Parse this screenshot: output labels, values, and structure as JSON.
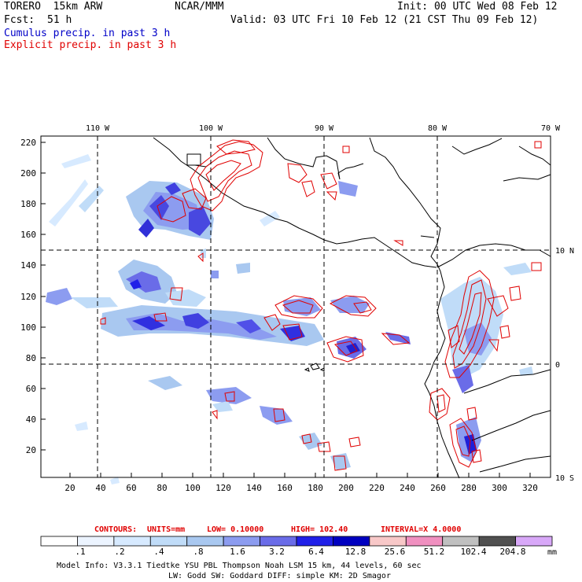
{
  "header": {
    "model": "TORERO  15km ARW",
    "forecast_label": "Fcst:",
    "forecast_hours": "51 h",
    "org": "NCAR/MMM",
    "init": "Init: 00 UTC Wed 08 Feb 12",
    "valid": "Valid: 03 UTC Fri 10 Feb 12 (21 CST Thu 09 Feb 12)",
    "field_cumulus": "Cumulus precip. in past 3 h",
    "field_explicit": "Explicit precip. in past 3 h"
  },
  "colors": {
    "cumulus_text": "#0000c8",
    "explicit_text": "#e00000",
    "contour": "#e00000",
    "coast": "#000000"
  },
  "map": {
    "lon_labels": [
      "110 W",
      "100 W",
      "90 W",
      "80 W",
      "70 W"
    ],
    "lat_labels": [
      "10 N",
      "0",
      "10 S"
    ],
    "y_ticks": [
      "220",
      "200",
      "180",
      "160",
      "140",
      "120",
      "100",
      "80",
      "60",
      "40",
      "20"
    ],
    "x_ticks": [
      "20",
      "40",
      "60",
      "80",
      "100",
      "120",
      "140",
      "160",
      "180",
      "200",
      "220",
      "240",
      "260",
      "280",
      "300",
      "320"
    ]
  },
  "contour_info": {
    "label": "CONTOURS:",
    "units": "UNITS=mm",
    "low": "LOW= 0.10000",
    "high": "HIGH= 102.40",
    "interval": "INTERVAL=X  4.0000"
  },
  "colorbar": {
    "colors": [
      "#ffffff",
      "#ecf4ff",
      "#d7eaff",
      "#c0dcf8",
      "#a9c8f0",
      "#8c9cf0",
      "#6a6ce8",
      "#2020e8",
      "#0000c0",
      "#f8c8c8",
      "#f090c0",
      "#c0c0c0",
      "#505050",
      "#d8a8f8"
    ],
    "labels": [
      ".1",
      ".2",
      ".4",
      ".8",
      "1.6",
      "3.2",
      "6.4",
      "12.8",
      "25.6",
      "51.2",
      "102.4",
      "204.8"
    ],
    "unit": "mm"
  },
  "footer": {
    "line1": "Model Info: V3.3.1    Tiedtke YSU PBL  Thompson     Noah LSM  15 km,    44 levels,    60 sec",
    "line2": "LW: Godd SW: Goddard DIFF: simple KM: 2D Smagor"
  }
}
